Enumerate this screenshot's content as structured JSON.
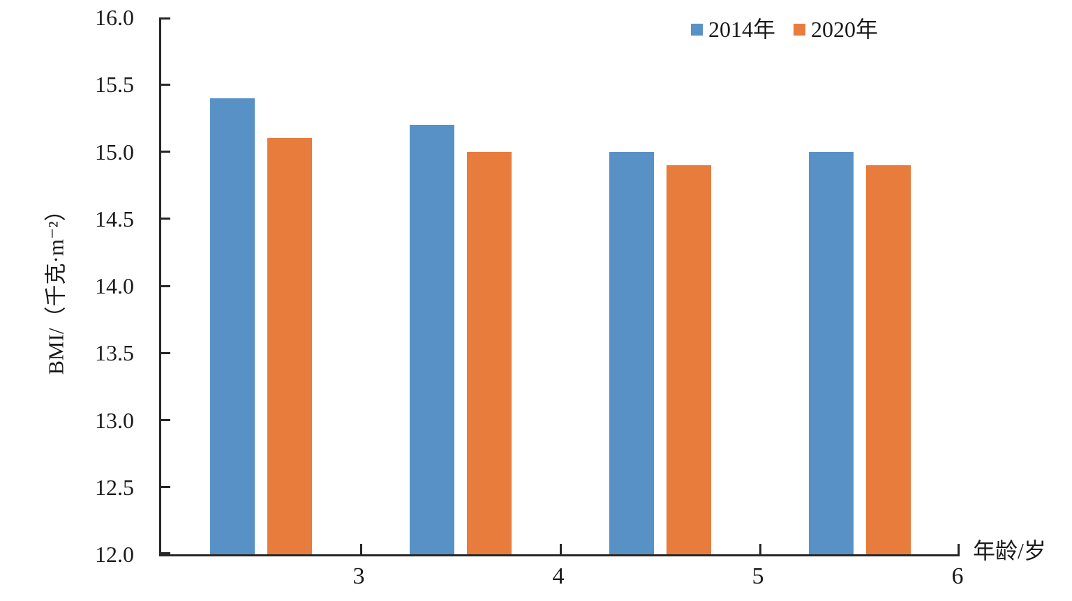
{
  "chart_data": {
    "type": "bar",
    "title": "",
    "categories": [
      "3",
      "4",
      "5",
      "6"
    ],
    "series": [
      {
        "name": "2014年",
        "color": "#5891C5",
        "values": [
          15.4,
          15.2,
          15.0,
          15.0
        ]
      },
      {
        "name": "2020年",
        "color": "#E87C3C",
        "values": [
          15.1,
          15.0,
          14.9,
          14.9
        ]
      }
    ],
    "xlabel": "年龄/岁",
    "ylabel": "BMI/（千克·m⁻²）",
    "ylim": [
      12.0,
      16.0
    ],
    "ytick_step": 0.5,
    "yticks": [
      "12.0",
      "12.5",
      "13.0",
      "13.5",
      "14.0",
      "14.5",
      "15.0",
      "15.5",
      "16.0"
    ],
    "grid": false,
    "legend_position": "top-right",
    "axis_color": "#262626",
    "text_color": "#1a1a1a"
  }
}
